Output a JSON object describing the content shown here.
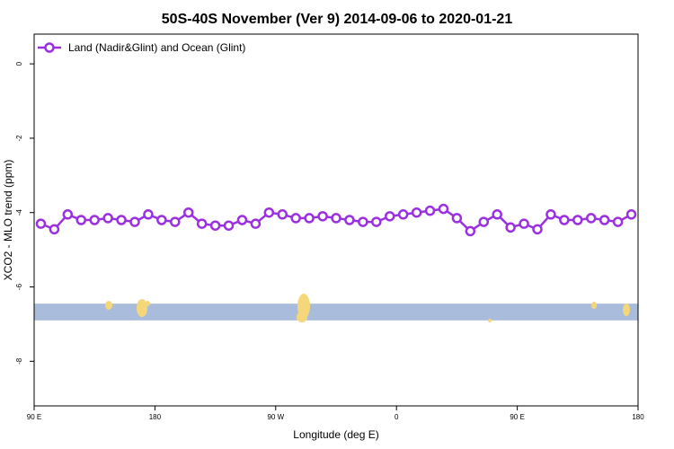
{
  "chart_data": {
    "type": "line",
    "title": "50S-40S November (Ver 9)   2014-09-06 to 2020-01-21",
    "xlabel": "Longitude (deg E)",
    "ylabel": "XCO2 - MLO trend (ppm)",
    "x_ticks": [
      {
        "value": 90,
        "label": "90 E"
      },
      {
        "value": 180,
        "label": "180"
      },
      {
        "value": 270,
        "label": "90 W"
      },
      {
        "value": 360,
        "label": "0"
      },
      {
        "value": 450,
        "label": "90 E"
      },
      {
        "value": 540,
        "label": "180"
      }
    ],
    "y_ticks": [
      0,
      -2,
      -4,
      -6,
      -8
    ],
    "xlim": [
      90,
      540
    ],
    "ylim": [
      -9.2,
      0.8
    ],
    "legend_position": "top-left",
    "colors": {
      "series": "#9b30e0",
      "ocean_band": "#a9bcdb",
      "land": "#f5d77a"
    },
    "series": [
      {
        "name": "Land (Nadir&Glint) and Ocean (Glint)",
        "x": [
          95,
          105,
          115,
          125,
          135,
          145,
          155,
          165,
          175,
          185,
          195,
          205,
          215,
          225,
          235,
          245,
          255,
          265,
          275,
          285,
          295,
          305,
          315,
          325,
          335,
          345,
          355,
          365,
          375,
          385,
          395,
          405,
          415,
          425,
          435,
          445,
          455,
          465,
          475,
          485,
          495,
          505,
          515,
          525,
          535
        ],
        "y": [
          -4.3,
          -4.45,
          -4.05,
          -4.2,
          -4.2,
          -4.15,
          -4.2,
          -4.25,
          -4.05,
          -4.2,
          -4.25,
          -4.0,
          -4.3,
          -4.35,
          -4.35,
          -4.2,
          -4.3,
          -4.0,
          -4.05,
          -4.15,
          -4.15,
          -4.1,
          -4.15,
          -4.2,
          -4.25,
          -4.25,
          -4.1,
          -4.05,
          -4.0,
          -3.95,
          -3.9,
          -4.15,
          -4.5,
          -4.25,
          -4.05,
          -4.4,
          -4.3,
          -4.45,
          -4.05,
          -4.2,
          -4.2,
          -4.15,
          -4.2,
          -4.25,
          -4.05
        ]
      }
    ],
    "background_band": {
      "ymin": -6.9,
      "ymax": -6.45
    }
  }
}
